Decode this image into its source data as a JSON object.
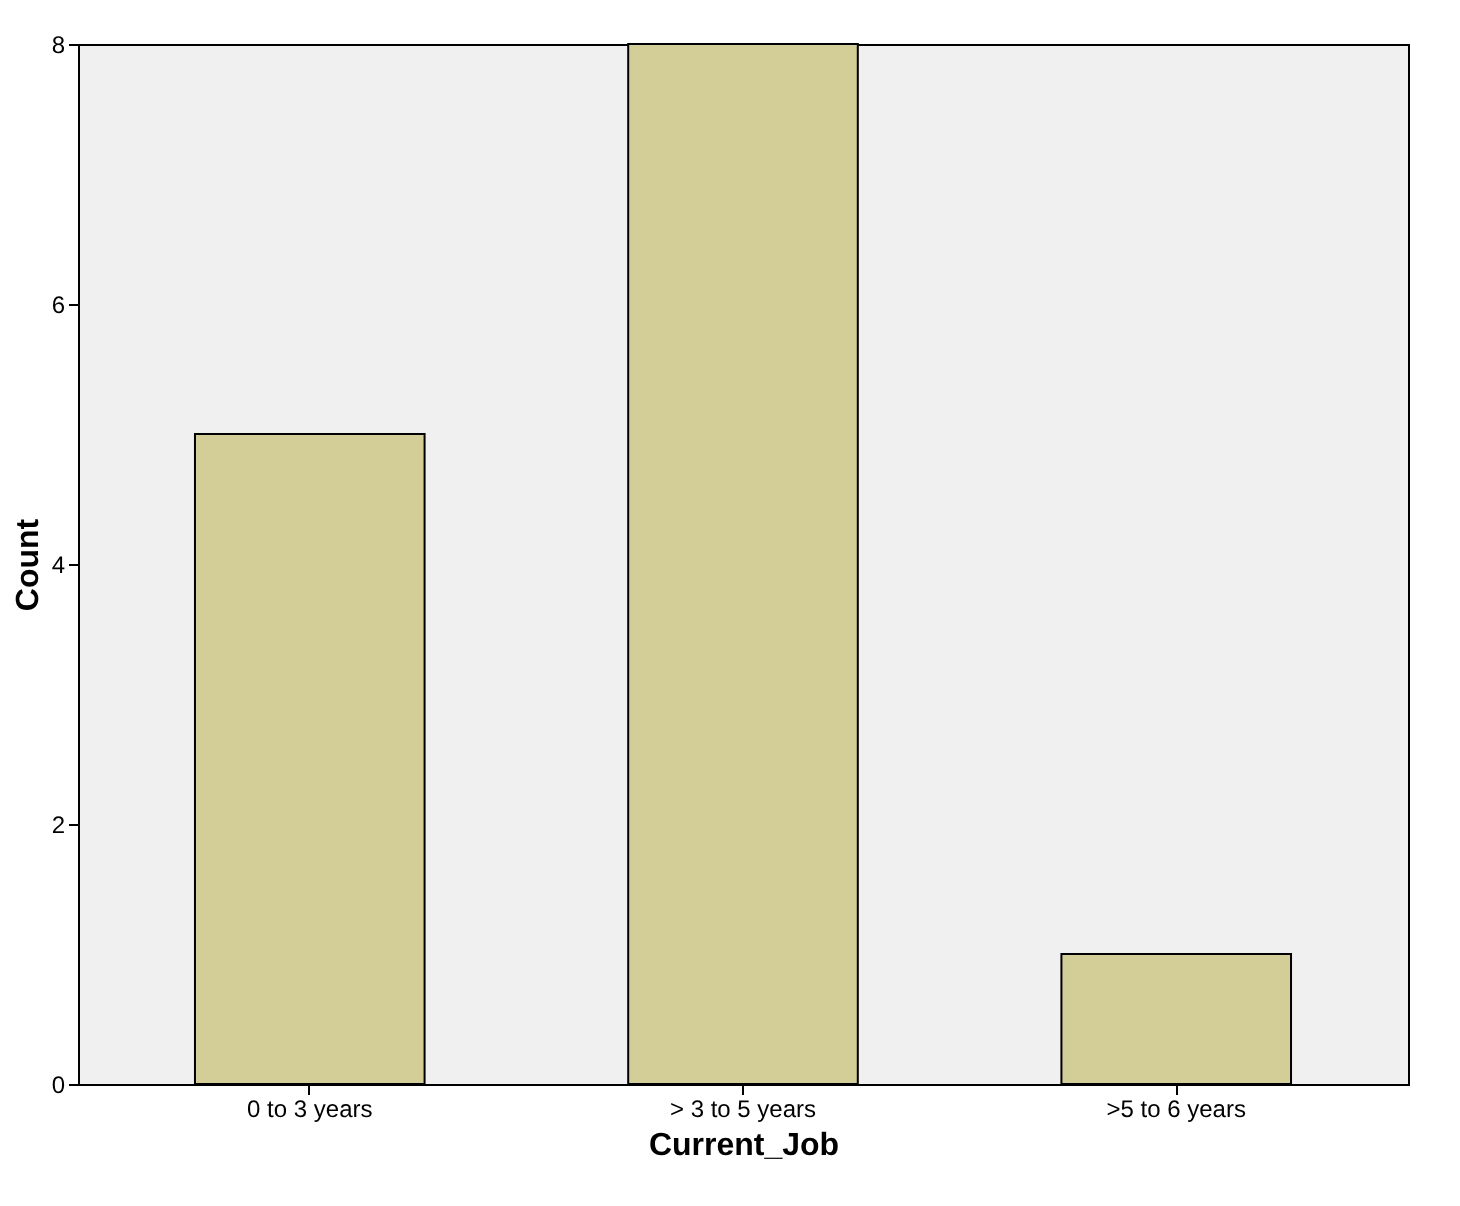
{
  "chart_data": {
    "type": "bar",
    "xlabel": "Current_Job",
    "ylabel": "Count",
    "categories": [
      "0 to 3 years",
      "> 3 to 5 years",
      ">5 to 6 years"
    ],
    "values": [
      5,
      8,
      1
    ],
    "color": "#d3ce97",
    "ylim": [
      0,
      8
    ],
    "yticks": [
      0,
      2,
      4,
      6,
      8
    ],
    "grid": false
  }
}
